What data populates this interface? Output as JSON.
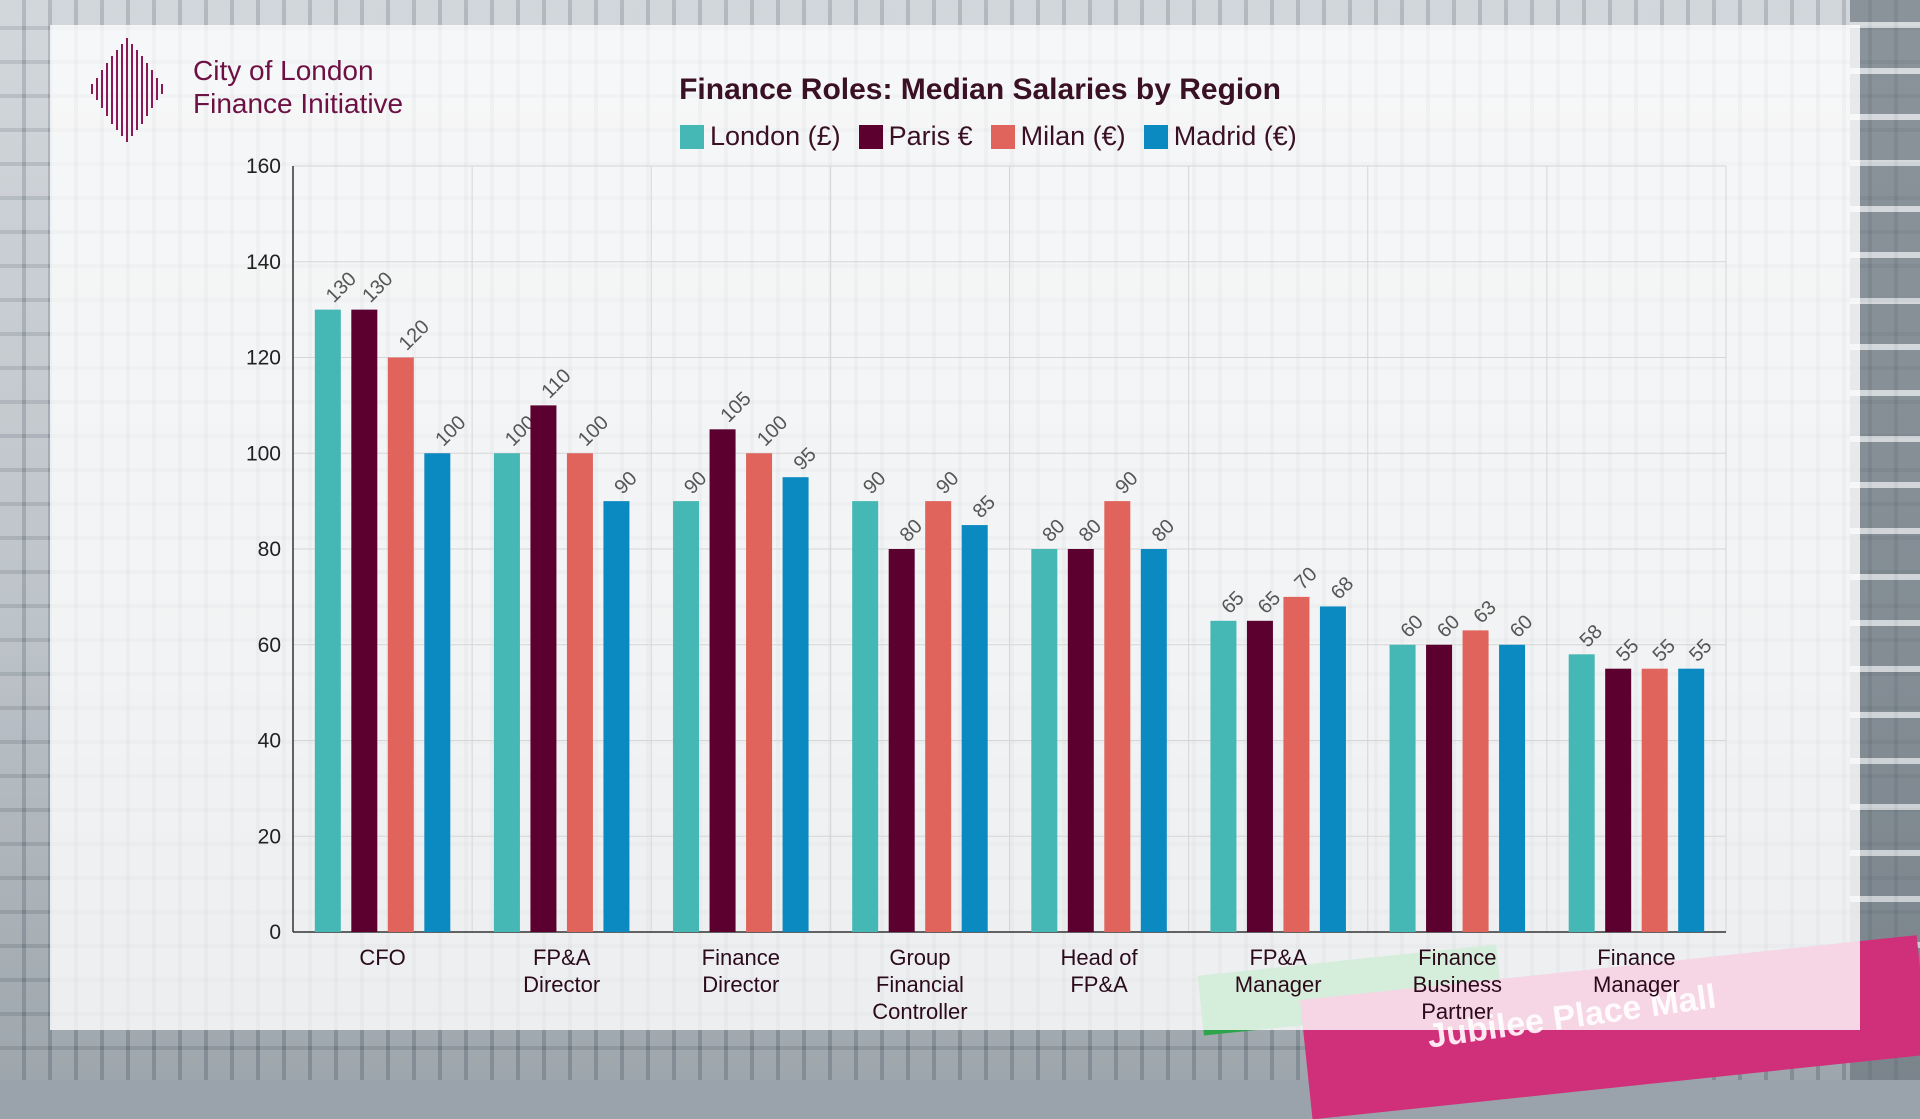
{
  "brand": {
    "line1": "City of London",
    "line2": "Finance Initiative"
  },
  "background": {
    "sign_text": "Jubilee Place Mall"
  },
  "colors": {
    "London": "#45b7b4",
    "Paris": "#5c0030",
    "Milan": "#e0635c",
    "Madrid": "#0b8ac2"
  },
  "chart_data": {
    "type": "bar",
    "title": "Finance Roles: Median Salaries by Region",
    "categories": [
      "CFO",
      "FP&A Director",
      "Finance Director",
      "Group Financial Controller",
      "Head of FP&A",
      "FP&A Manager",
      "Finance Business Partner",
      "Finance Manager"
    ],
    "category_lines": [
      [
        "CFO"
      ],
      [
        "FP&A",
        "Director"
      ],
      [
        "Finance",
        "Director"
      ],
      [
        "Group",
        "Financial",
        "Controller"
      ],
      [
        "Head of",
        "FP&A"
      ],
      [
        "FP&A",
        "Manager"
      ],
      [
        "Finance",
        "Business",
        "Partner"
      ],
      [
        "Finance",
        "Manager"
      ]
    ],
    "series": [
      {
        "name": "London (£)",
        "key": "London",
        "values": [
          130,
          100,
          90,
          90,
          80,
          65,
          60,
          58
        ]
      },
      {
        "name": "Paris €",
        "key": "Paris",
        "values": [
          130,
          110,
          105,
          80,
          80,
          65,
          60,
          55
        ]
      },
      {
        "name": "Milan (€)",
        "key": "Milan",
        "values": [
          120,
          100,
          100,
          90,
          90,
          70,
          63,
          55
        ]
      },
      {
        "name": "Madrid (€)",
        "key": "Madrid",
        "values": [
          100,
          90,
          95,
          85,
          80,
          68,
          60,
          55
        ]
      }
    ],
    "ylim": [
      0,
      160
    ],
    "yticks": [
      0,
      20,
      40,
      60,
      80,
      100,
      120,
      140,
      160
    ],
    "xlabel": "",
    "ylabel": "",
    "legend_position": "top-center",
    "grid": true,
    "data_labels": true
  }
}
